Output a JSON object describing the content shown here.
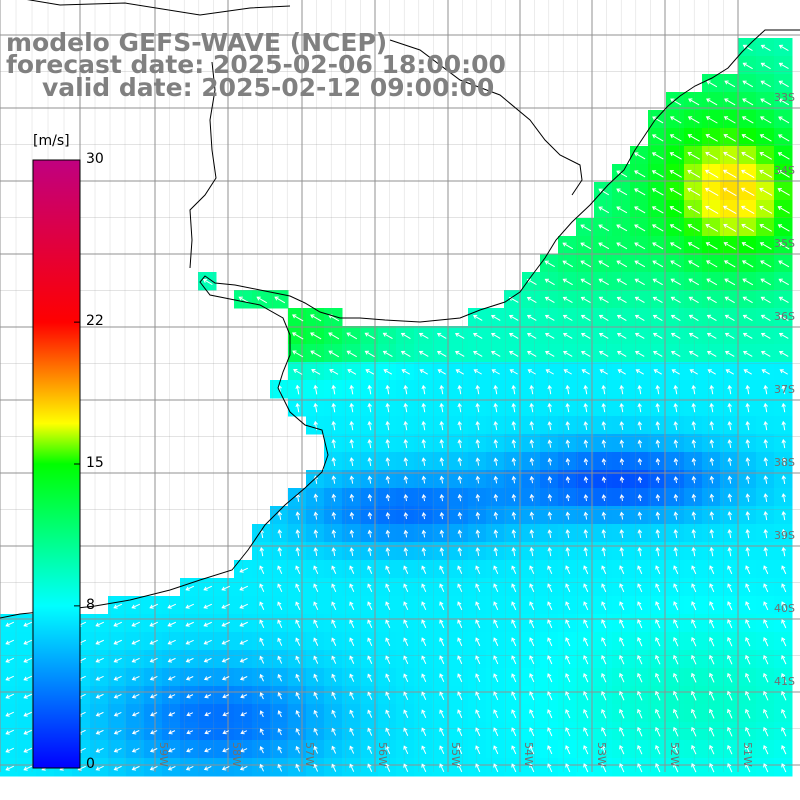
{
  "title": {
    "line1": "modelo GEFS-WAVE (NCEP)",
    "line2": "forecast date: 2025-02-06 18:00:00",
    "line3": "valid date: 2025-02-12 09:00:00"
  },
  "colorbar": {
    "unit": "[m/s]",
    "ticks": [
      30,
      22,
      15,
      8,
      0
    ],
    "stops": [
      {
        "v": 0,
        "color": "#0000ff"
      },
      {
        "v": 8,
        "color": "#00ffff"
      },
      {
        "v": 15,
        "color": "#00ff00"
      },
      {
        "v": 17,
        "color": "#ffff00"
      },
      {
        "v": 22,
        "color": "#ff0000"
      },
      {
        "v": 30,
        "color": "#c00080"
      }
    ]
  },
  "lat_labels": [
    "33S",
    "34S",
    "35S",
    "36S",
    "37S",
    "38S",
    "39S",
    "40S",
    "41S"
  ],
  "lon_labels": [
    "59W",
    "58W",
    "57W",
    "56W",
    "55W",
    "54W",
    "53W",
    "52W",
    "51W"
  ],
  "colors": {
    "grid": "#909090",
    "land": "#ffffff",
    "coast": "#000000",
    "arrow": "#ffffff"
  }
}
